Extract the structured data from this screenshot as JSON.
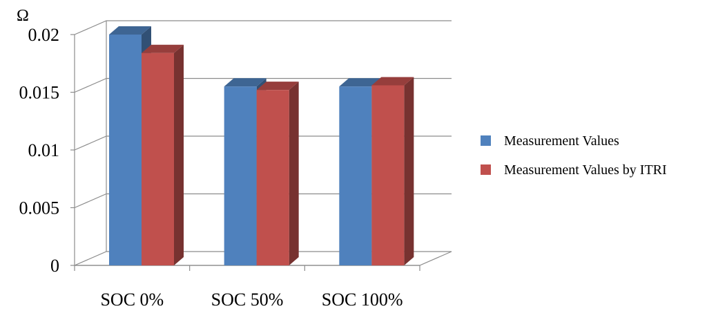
{
  "chart_data": {
    "type": "bar",
    "unit_label": "Ω",
    "categories": [
      "SOC 0%",
      "SOC 50%",
      "SOC 100%"
    ],
    "series": [
      {
        "name": "Measurement Values",
        "values": [
          0.02,
          0.0155,
          0.0155
        ],
        "color": "#4F81BD"
      },
      {
        "name": "Measurement Values by ITRI",
        "values": [
          0.0184,
          0.0152,
          0.0156
        ],
        "color": "#C0504D"
      }
    ],
    "y_ticks": [
      "0",
      "0.005",
      "0.01",
      "0.015",
      "0.02"
    ],
    "ylim": [
      0,
      0.02
    ],
    "grid": true,
    "legend_position": "right"
  }
}
